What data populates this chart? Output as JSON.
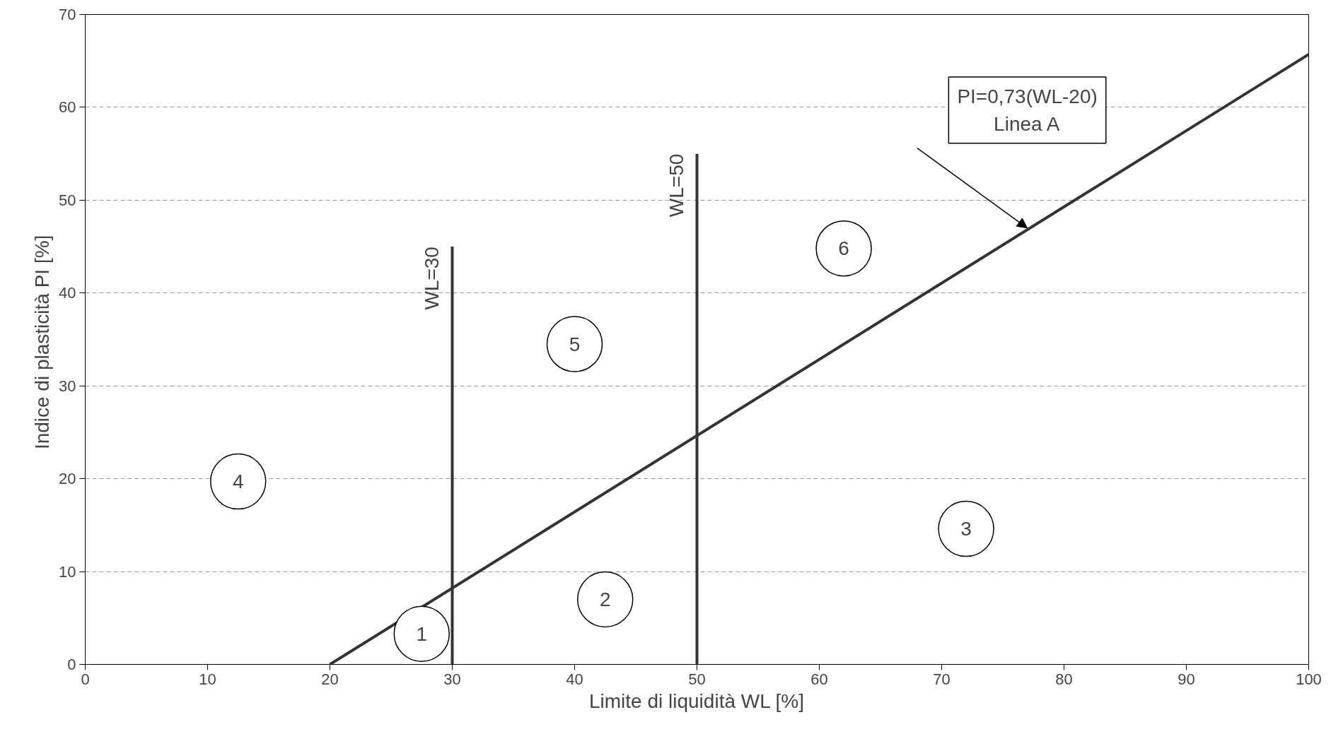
{
  "chart_data": {
    "type": "line",
    "xlabel": "Limite di liquidità WL [%]",
    "ylabel": "Indice di plasticità PI  [%]",
    "xlim": [
      0,
      100
    ],
    "ylim": [
      0,
      70
    ],
    "xticks": [
      0,
      10,
      20,
      30,
      40,
      50,
      60,
      70,
      80,
      90,
      100
    ],
    "yticks": [
      0,
      10,
      20,
      30,
      40,
      50,
      60,
      70
    ],
    "grid": "y",
    "legend": false,
    "marker": "none",
    "line_style": "solid",
    "series": [
      {
        "color": "#333333",
        "x": [
          20,
          100
        ],
        "values": [
          0,
          65.7
        ]
      },
      {
        "name": "WL=30",
        "color": "#333333",
        "x": [
          30,
          30
        ],
        "values": [
          0,
          45
        ]
      },
      {
        "name": "WL=50",
        "color": "#333333",
        "x": [
          50,
          50
        ],
        "values": [
          0,
          55
        ]
      }
    ],
    "annotations": [
      "PI=0,73(WL-20)\nLinea A",
      "1",
      "2",
      "3",
      "4",
      "5",
      "6"
    ]
  }
}
